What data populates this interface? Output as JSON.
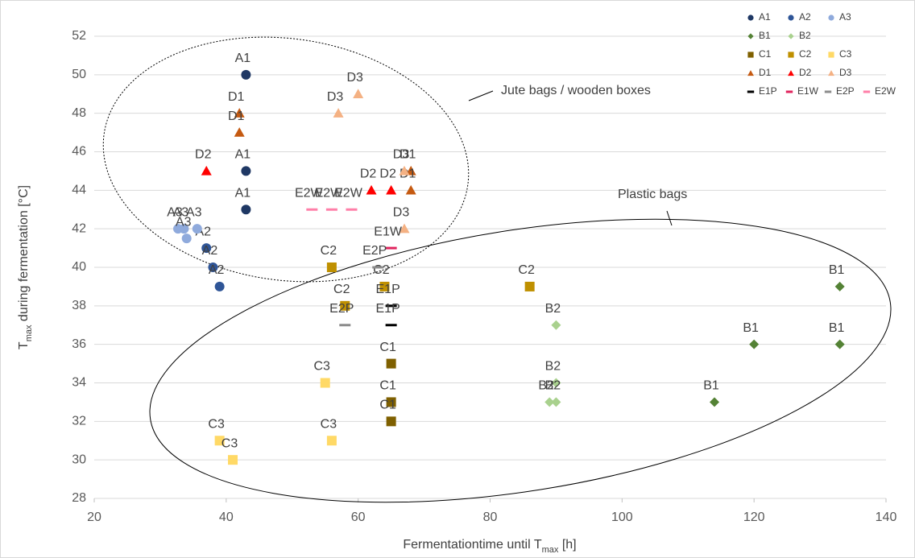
{
  "chart_data": {
    "type": "scatter",
    "x_label_parts": [
      "Fermentationtime until T",
      "max",
      " [h]"
    ],
    "y_label_parts": [
      "T",
      "max",
      " during fermentation [°C]"
    ],
    "annotations": [
      "Jute bags / wooden boxes",
      "Plastic bags"
    ],
    "xlim": [
      20,
      140
    ],
    "xticks": [
      20,
      40,
      60,
      80,
      100,
      120,
      140
    ],
    "ylim": [
      28,
      52
    ],
    "yticks": [
      28,
      30,
      32,
      34,
      36,
      38,
      40,
      42,
      44,
      46,
      48,
      50,
      52
    ],
    "grid": true,
    "legend": "top-right",
    "series": [
      {
        "name": "A1",
        "color": "#1f3864",
        "marker": "circle",
        "x": [
          43,
          43,
          43
        ],
        "y": [
          50,
          45,
          43
        ]
      },
      {
        "name": "A2",
        "color": "#2f5597",
        "marker": "circle",
        "x": [
          37,
          38,
          39
        ],
        "y": [
          41,
          40,
          39
        ]
      },
      {
        "name": "A3",
        "color": "#8faadc",
        "marker": "circle",
        "x": [
          32.7,
          33.6,
          35.6,
          34
        ],
        "y": [
          42,
          42,
          42,
          41.5
        ]
      },
      {
        "name": "B1",
        "color": "#548235",
        "marker": "diamond",
        "x": [
          133,
          120,
          133,
          114
        ],
        "y": [
          39,
          36,
          36,
          33
        ]
      },
      {
        "name": "B2",
        "color": "#a9d18e",
        "marker": "diamond",
        "x": [
          90,
          90,
          89,
          90
        ],
        "y": [
          37,
          34,
          33,
          33
        ]
      },
      {
        "name": "C1",
        "color": "#7f6000",
        "marker": "square",
        "x": [
          65,
          65,
          65
        ],
        "y": [
          35,
          33,
          32
        ]
      },
      {
        "name": "C2",
        "color": "#bf9000",
        "marker": "square",
        "x": [
          56,
          58,
          64,
          86
        ],
        "y": [
          40,
          38,
          39,
          39
        ]
      },
      {
        "name": "C3",
        "color": "#ffd966",
        "marker": "square",
        "x": [
          55,
          39,
          41,
          56
        ],
        "y": [
          34,
          31,
          30,
          31
        ]
      },
      {
        "name": "D1",
        "color": "#c55a11",
        "marker": "triangle",
        "x": [
          42,
          42,
          68,
          68
        ],
        "y": [
          48,
          47,
          45,
          44
        ]
      },
      {
        "name": "D2",
        "color": "#ff0000",
        "marker": "triangle",
        "x": [
          37,
          62,
          65
        ],
        "y": [
          45,
          44,
          44
        ]
      },
      {
        "name": "D3",
        "color": "#f4b183",
        "marker": "triangle",
        "x": [
          57,
          60,
          67,
          67
        ],
        "y": [
          48,
          49,
          45,
          42
        ]
      },
      {
        "name": "E1P",
        "color": "#000000",
        "marker": "dash",
        "x": [
          65,
          65
        ],
        "y": [
          38,
          37
        ]
      },
      {
        "name": "E1W",
        "color": "#e0245e",
        "marker": "dash",
        "x": [
          65
        ],
        "y": [
          41
        ]
      },
      {
        "name": "E2P",
        "color": "#8c8c8c",
        "marker": "dash",
        "x": [
          63,
          58
        ],
        "y": [
          40,
          37
        ]
      },
      {
        "name": "E2W",
        "color": "#ff7fa8",
        "marker": "dash",
        "x": [
          53,
          56,
          59
        ],
        "y": [
          43,
          43,
          43
        ]
      }
    ]
  }
}
